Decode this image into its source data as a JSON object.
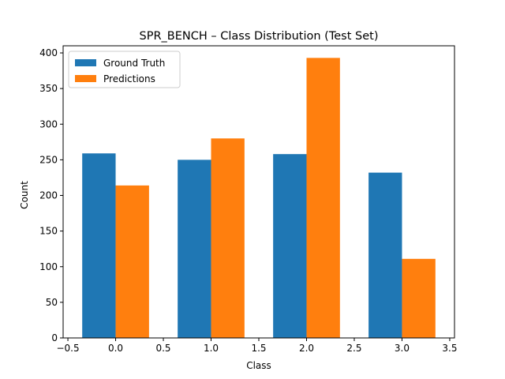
{
  "chart_data": {
    "type": "bar",
    "title": "SPR_BENCH – Class Distribution (Test Set)",
    "xlabel": "Class",
    "ylabel": "Count",
    "categories": [
      0,
      1,
      2,
      3
    ],
    "xlim": [
      -0.55,
      3.55
    ],
    "ylim": [
      0,
      410
    ],
    "xticks": [
      "−0.5",
      "0.0",
      "0.5",
      "1.0",
      "1.5",
      "2.0",
      "2.5",
      "3.0",
      "3.5"
    ],
    "xtick_values": [
      -0.5,
      0.0,
      0.5,
      1.0,
      1.5,
      2.0,
      2.5,
      3.0,
      3.5
    ],
    "yticks": [
      "0",
      "50",
      "100",
      "150",
      "200",
      "250",
      "300",
      "350",
      "400"
    ],
    "ytick_values": [
      0,
      50,
      100,
      150,
      200,
      250,
      300,
      350,
      400
    ],
    "bar_width": 0.35,
    "legend_position": "upper-left",
    "grid": false,
    "series": [
      {
        "name": "Ground Truth",
        "color": "#1f77b4",
        "values": [
          259,
          250,
          258,
          232
        ]
      },
      {
        "name": "Predictions",
        "color": "#ff7f0e",
        "values": [
          214,
          280,
          393,
          111
        ]
      }
    ]
  }
}
